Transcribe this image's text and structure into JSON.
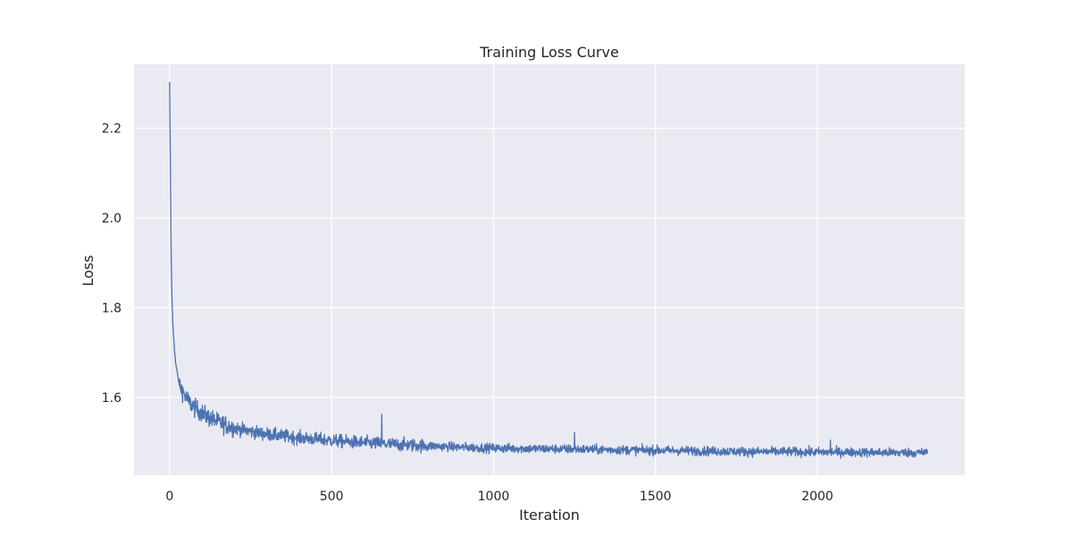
{
  "chart_data": {
    "type": "line",
    "title": "Training Loss Curve",
    "xlabel": "Iteration",
    "ylabel": "Loss",
    "xlim": [
      -110,
      2455
    ],
    "ylim": [
      1.4265,
      2.3425
    ],
    "xticks": [
      0,
      500,
      1000,
      1500,
      2000
    ],
    "xtick_labels": [
      "0",
      "500",
      "1000",
      "1500",
      "2000"
    ],
    "yticks": [
      1.6,
      1.8,
      2.0,
      2.2
    ],
    "ytick_labels": [
      "1.6",
      "1.8",
      "2.0",
      "2.2"
    ],
    "grid": true,
    "legend": "none",
    "colors": {
      "line": "#4c72b0",
      "plot_bg": "#eaeaf2",
      "grid": "#ffffff"
    },
    "series": [
      {
        "x": [
          0,
          3,
          5,
          7,
          10,
          14,
          18,
          22,
          26,
          30,
          40,
          50,
          60,
          75,
          90,
          110,
          130,
          150,
          175,
          200,
          230,
          260,
          300,
          350,
          400,
          450,
          500,
          550,
          600,
          650,
          700,
          800,
          900,
          1000,
          1100,
          1200,
          1300,
          1400,
          1500,
          1600,
          1700,
          1800,
          1900,
          2000,
          2100,
          2200,
          2340
        ],
        "values": [
          2.3,
          2.05,
          1.9,
          1.83,
          1.76,
          1.72,
          1.68,
          1.66,
          1.645,
          1.63,
          1.615,
          1.6,
          1.59,
          1.578,
          1.57,
          1.56,
          1.552,
          1.545,
          1.538,
          1.532,
          1.527,
          1.523,
          1.518,
          1.514,
          1.51,
          1.507,
          1.504,
          1.501,
          1.499,
          1.497,
          1.495,
          1.492,
          1.489,
          1.487,
          1.486,
          1.485,
          1.484,
          1.483,
          1.482,
          1.481,
          1.48,
          1.479,
          1.479,
          1.478,
          1.478,
          1.477,
          1.477
        ]
      }
    ],
    "noise_points": 2340,
    "annotations_peaks": [
      {
        "x": 655,
        "y": 1.562
      },
      {
        "x": 1250,
        "y": 1.522
      },
      {
        "x": 2040,
        "y": 1.505
      }
    ]
  }
}
